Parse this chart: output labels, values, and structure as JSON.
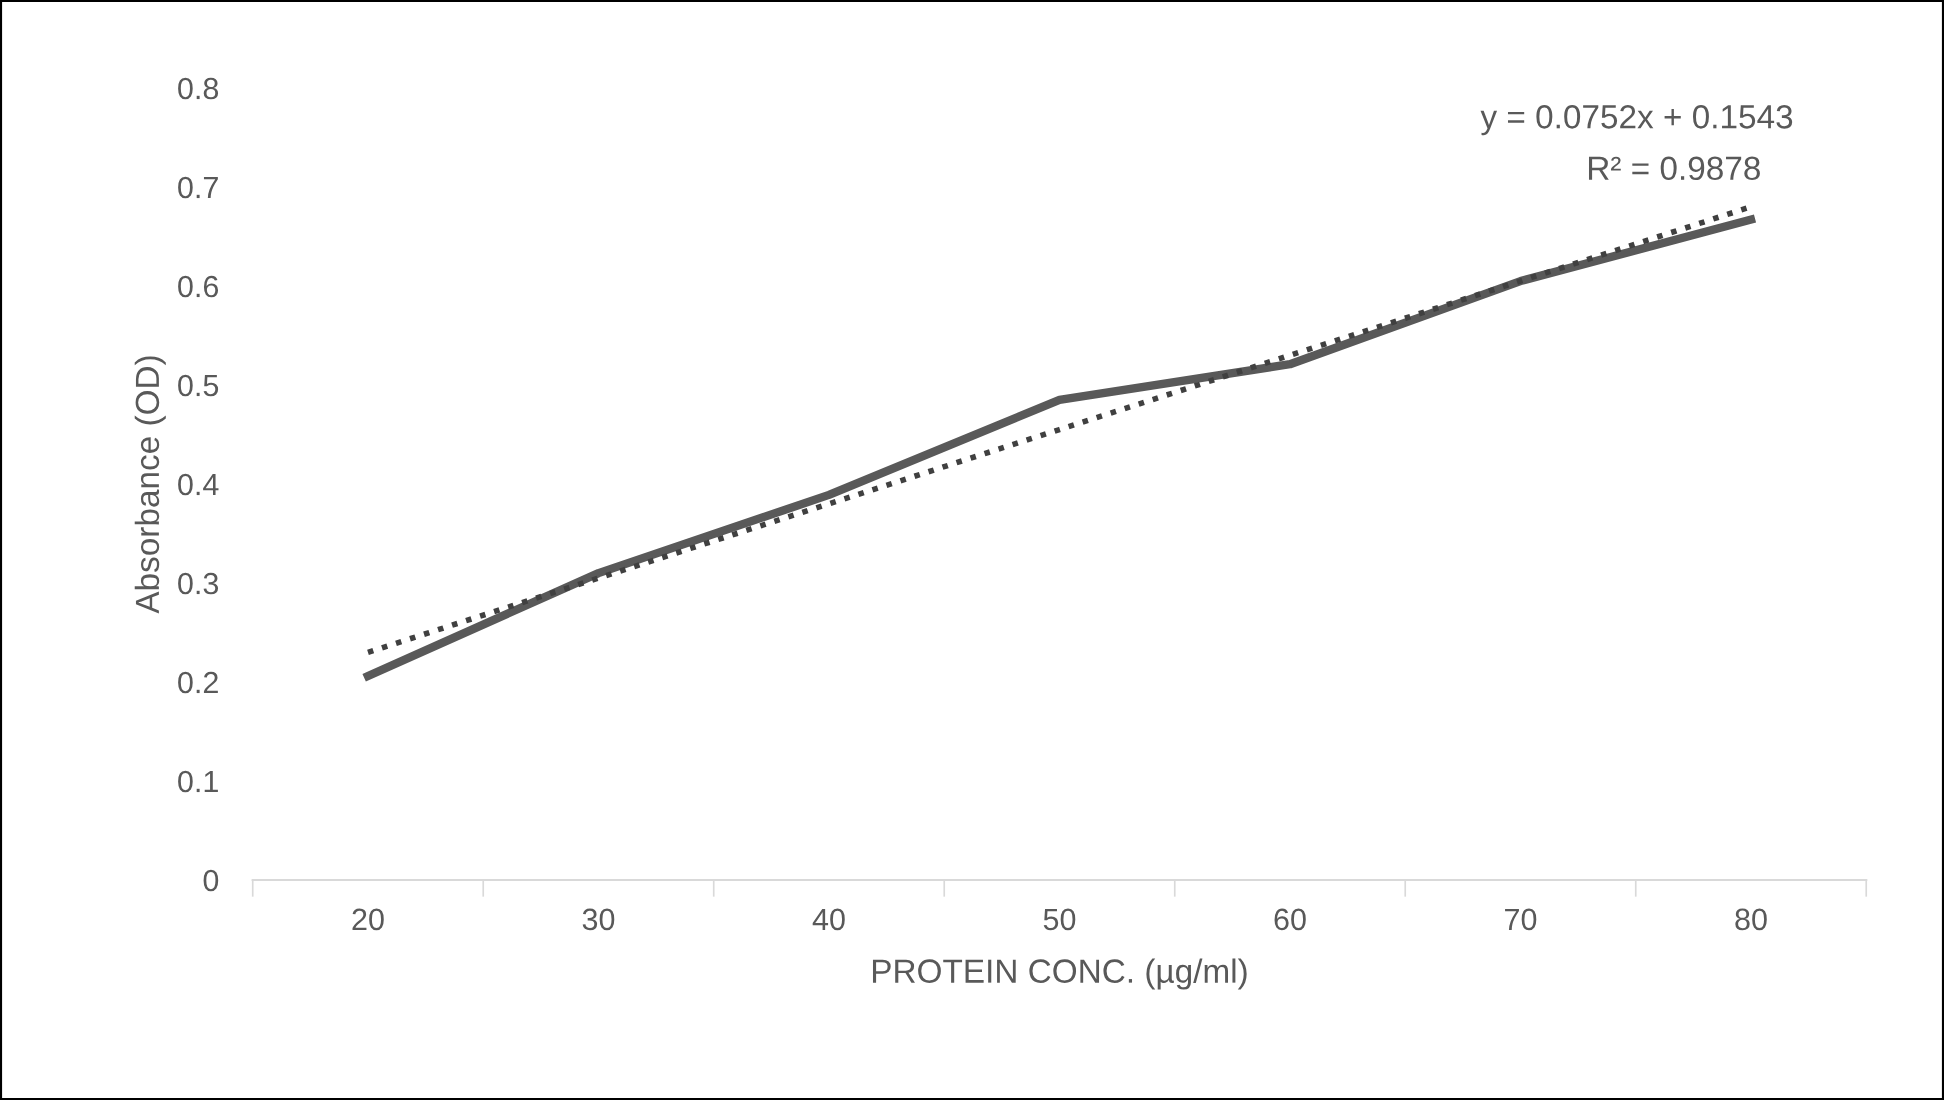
{
  "chart_data": {
    "type": "line",
    "xlabel": "PROTEIN CONC. (µg/ml)",
    "ylabel": "Absorbance (OD)",
    "categories": [
      "20",
      "30",
      "40",
      "50",
      "60",
      "70",
      "80"
    ],
    "series": [
      {
        "color": "#595959",
        "line_style": "solid",
        "values": [
          0.206,
          0.31,
          0.389,
          0.485,
          0.521,
          0.605,
          0.667
        ]
      },
      {
        "color": "#404040",
        "line_style": "dotted",
        "values": [
          0.23,
          0.305,
          0.38,
          0.455,
          0.53,
          0.605,
          0.68
        ]
      }
    ],
    "ylim": [
      0,
      0.8
    ],
    "yticks": [
      0,
      0.1,
      0.2,
      0.3,
      0.4,
      0.5,
      0.6,
      0.7,
      0.8
    ],
    "grid": false,
    "legend": false,
    "annotations": [
      "y = 0.0752x + 0.1543",
      "R² = 0.9878"
    ]
  }
}
